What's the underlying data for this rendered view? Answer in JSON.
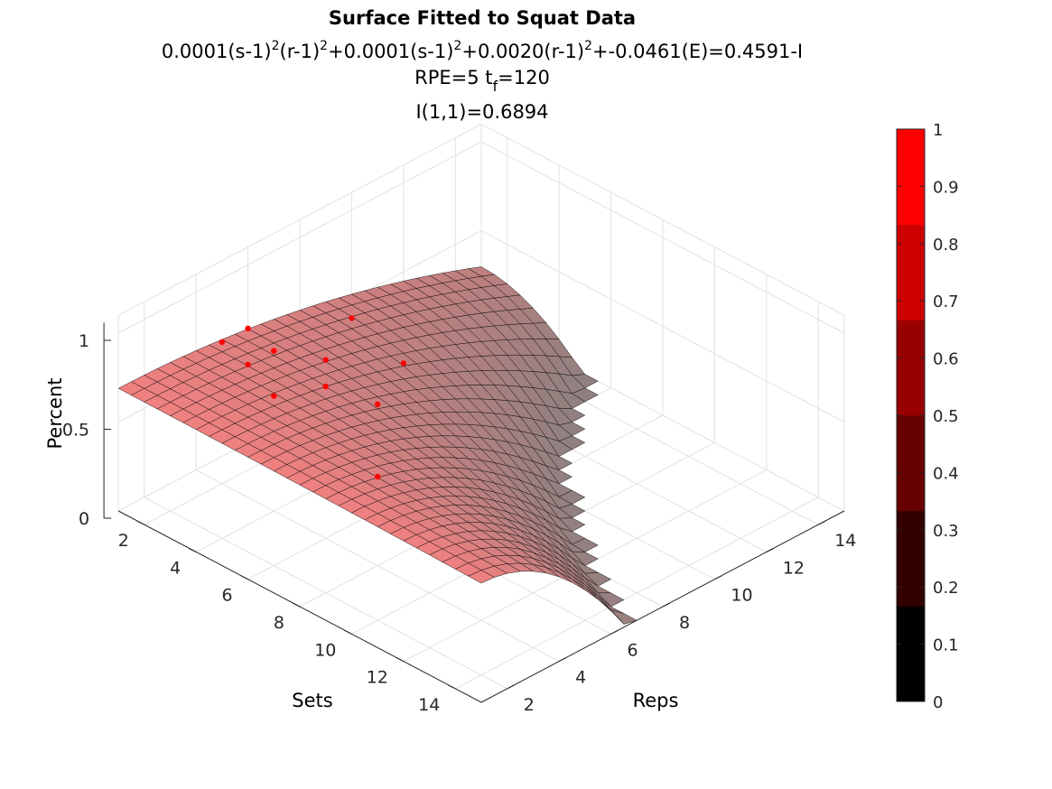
{
  "chart_data": {
    "type": "surface",
    "title": "Surface Fitted to Squat Data",
    "subtitle": {
      "equation_parts": [
        "0.0001(s-1)",
        "2",
        "(r-1)",
        "2",
        "+0.0001(s-1)",
        "2",
        "+0.0020(r-1)",
        "2",
        "+-0.0461(E)=0.4591-I"
      ],
      "params_a": "RPE=5  t",
      "params_sub": "f",
      "params_b": "=120",
      "init": "I(1,1)=0.6894"
    },
    "xlabel": "Sets",
    "ylabel": "Reps",
    "zlabel": "Percent",
    "xlim": [
      1,
      15
    ],
    "ylim": [
      1,
      15
    ],
    "zlim": [
      0,
      1.1
    ],
    "x_ticks": [
      "2",
      "4",
      "6",
      "8",
      "10",
      "12",
      "14"
    ],
    "y_ticks": [
      "2",
      "4",
      "6",
      "8",
      "10",
      "12",
      "14"
    ],
    "z_ticks": [
      "0",
      "0.5",
      "1"
    ],
    "grid": true,
    "surface": {
      "formula": "I = 0.6894 - 0.0001(s-1)^2(r-1)^2 - 0.0001(s-1)^2 - 0.0020(r-1)^2",
      "coeff_sr": 0.0001,
      "coeff_s": 0.0001,
      "coeff_r": 0.002,
      "intercept": 0.6894,
      "grid_steps": 28,
      "color_top": "#f08080",
      "color_low": "#808080",
      "edge_color": "#000000"
    },
    "points": [
      {
        "sets": 3,
        "reps": 3,
        "percent": 0.95
      },
      {
        "sets": 3,
        "reps": 4,
        "percent": 0.95
      },
      {
        "sets": 4,
        "reps": 3,
        "percent": 0.9
      },
      {
        "sets": 4,
        "reps": 4,
        "percent": 0.9
      },
      {
        "sets": 5,
        "reps": 5,
        "percent": 0.85
      },
      {
        "sets": 5,
        "reps": 3,
        "percent": 0.8
      },
      {
        "sets": 5,
        "reps": 5,
        "percent": 0.7
      },
      {
        "sets": 3,
        "reps": 8,
        "percent": 0.7
      },
      {
        "sets": 5,
        "reps": 8,
        "percent": 0.6
      },
      {
        "sets": 6,
        "reps": 6,
        "percent": 0.6
      },
      {
        "sets": 8,
        "reps": 4,
        "percent": 0.5
      }
    ],
    "point_color": "#ff0000",
    "colorbar": {
      "ticks": [
        "0",
        "0.1",
        "0.2",
        "0.3",
        "0.4",
        "0.5",
        "0.6",
        "0.7",
        "0.8",
        "0.9",
        "1"
      ],
      "bands": [
        "#000000",
        "#330000",
        "#660000",
        "#990000",
        "#cc0000",
        "#ff0000"
      ]
    }
  }
}
